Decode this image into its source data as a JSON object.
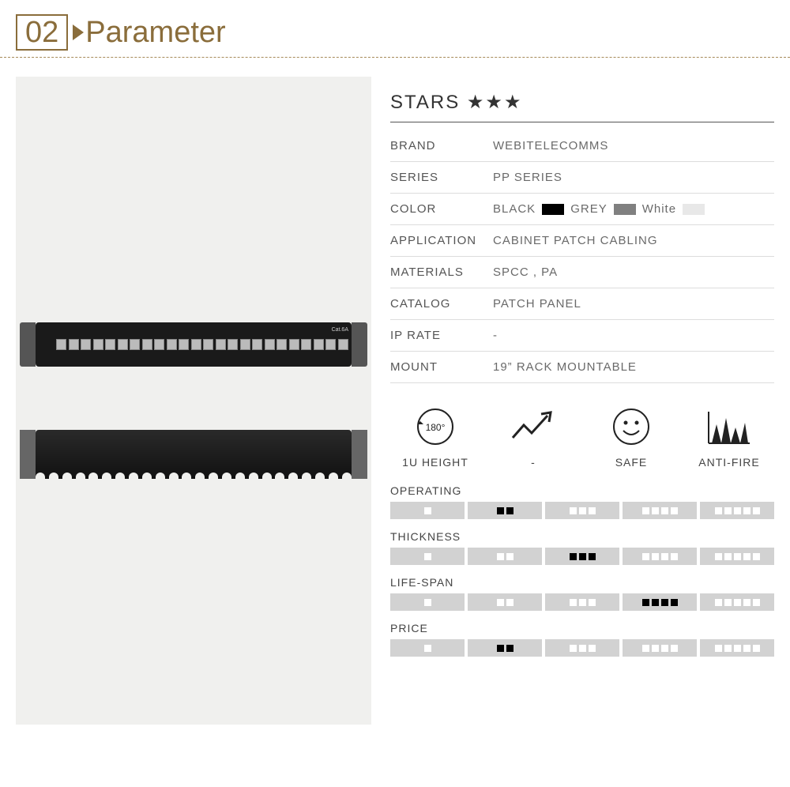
{
  "header": {
    "number": "02",
    "title": "Parameter",
    "accent_color": "#8a6d3b"
  },
  "stars": {
    "label": "STARS",
    "count": 3,
    "glyph": "★"
  },
  "specs": [
    {
      "label": "BRAND",
      "value": "WEBITELECOMMS"
    },
    {
      "label": "SERIES",
      "value": "PP SERIES"
    },
    {
      "label": "COLOR",
      "value": "",
      "colors": [
        {
          "name": "BLACK",
          "hex": "#000000"
        },
        {
          "name": "GREY",
          "hex": "#808080"
        },
        {
          "name": "White",
          "hex": "#e8e8e8"
        }
      ]
    },
    {
      "label": "APPLICATION",
      "value": "CABINET PATCH CABLING"
    },
    {
      "label": "MATERIALS",
      "value": "SPCC , PA"
    },
    {
      "label": "CATALOG",
      "value": "PATCH PANEL"
    },
    {
      "label": "IP RATE",
      "value": "-"
    },
    {
      "label": "MOUNT",
      "value": "19”  RACK MOUNTABLE"
    }
  ],
  "features": [
    {
      "icon": "rotate180",
      "label": "1U HEIGHT"
    },
    {
      "icon": "trend",
      "label": "-"
    },
    {
      "icon": "smile",
      "label": "SAFE"
    },
    {
      "icon": "flame-bars",
      "label": "ANTI-FIRE"
    }
  ],
  "ratings": [
    {
      "label": "OPERATING",
      "value": 2
    },
    {
      "label": "THICKNESS",
      "value": 3
    },
    {
      "label": "LIFE-SPAN",
      "value": 4
    },
    {
      "label": "PRICE",
      "value": 2
    }
  ],
  "rating_bar": {
    "cells": 5,
    "cell_bg": "#d2d2d2",
    "empty_dot": "#ffffff",
    "filled_dot": "#000000"
  },
  "product": {
    "ports": 24,
    "label": "Cat.6A",
    "bg": "#f0f0ee"
  }
}
